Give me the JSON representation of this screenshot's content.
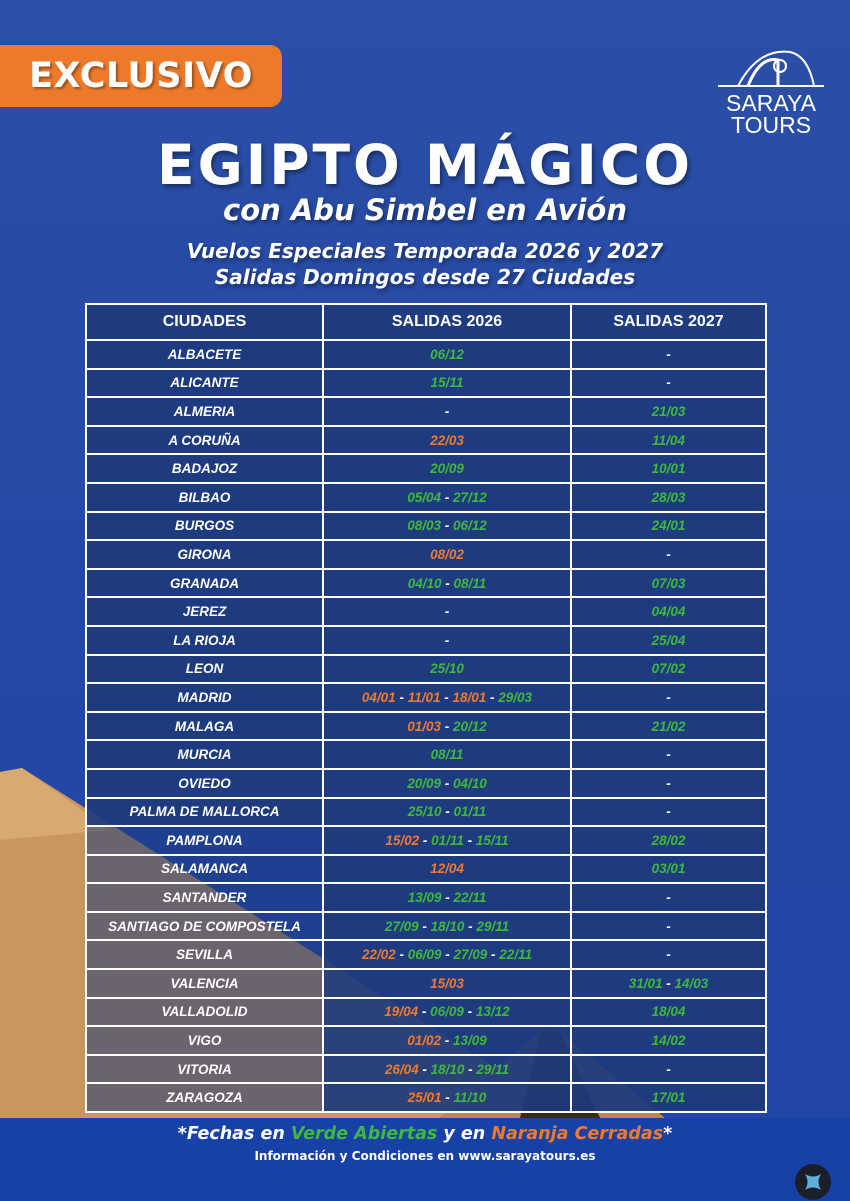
{
  "badge": "EXCLUSIVO",
  "logo": {
    "line1": "SARAYA",
    "line2": "TOURS"
  },
  "title": "EGIPTO MÁGICO",
  "subtitle": "con Abu Simbel en Avión",
  "tagline1": "Vuelos Especiales Temporada 2026 y 2027",
  "tagline2": "Salidas Domingos desde 27 Ciudades",
  "colors": {
    "open": "#3fb83a",
    "closed": "#f07a2a",
    "accent": "#ec7a2a",
    "background": "#2347a6"
  },
  "table": {
    "headers": [
      "CIUDADES",
      "SALIDAS 2026",
      "SALIDAS 2027"
    ],
    "rows": [
      {
        "city": "ALBACETE",
        "s2026": [
          {
            "date": "06/12",
            "status": "open"
          }
        ],
        "s2027": []
      },
      {
        "city": "ALICANTE",
        "s2026": [
          {
            "date": "15/11",
            "status": "open"
          }
        ],
        "s2027": []
      },
      {
        "city": "ALMERIA",
        "s2026": [],
        "s2027": [
          {
            "date": "21/03",
            "status": "open"
          }
        ]
      },
      {
        "city": "A CORUÑA",
        "s2026": [
          {
            "date": "22/03",
            "status": "closed"
          }
        ],
        "s2027": [
          {
            "date": "11/04",
            "status": "open"
          }
        ]
      },
      {
        "city": "BADAJOZ",
        "s2026": [
          {
            "date": "20/09",
            "status": "open"
          }
        ],
        "s2027": [
          {
            "date": "10/01",
            "status": "open"
          }
        ]
      },
      {
        "city": "BILBAO",
        "s2026": [
          {
            "date": "05/04",
            "status": "open"
          },
          {
            "date": "27/12",
            "status": "open"
          }
        ],
        "s2027": [
          {
            "date": "28/03",
            "status": "open"
          }
        ]
      },
      {
        "city": "BURGOS",
        "s2026": [
          {
            "date": "08/03",
            "status": "open"
          },
          {
            "date": "06/12",
            "status": "open"
          }
        ],
        "s2027": [
          {
            "date": "24/01",
            "status": "open"
          }
        ]
      },
      {
        "city": "GIRONA",
        "s2026": [
          {
            "date": "08/02",
            "status": "closed"
          }
        ],
        "s2027": []
      },
      {
        "city": "GRANADA",
        "s2026": [
          {
            "date": "04/10",
            "status": "open"
          },
          {
            "date": "08/11",
            "status": "open"
          }
        ],
        "s2027": [
          {
            "date": "07/03",
            "status": "open"
          }
        ]
      },
      {
        "city": "JEREZ",
        "s2026": [],
        "s2027": [
          {
            "date": "04/04",
            "status": "open"
          }
        ]
      },
      {
        "city": "LA RIOJA",
        "s2026": [],
        "s2027": [
          {
            "date": "25/04",
            "status": "open"
          }
        ]
      },
      {
        "city": "LEON",
        "s2026": [
          {
            "date": "25/10",
            "status": "open"
          }
        ],
        "s2027": [
          {
            "date": "07/02",
            "status": "open"
          }
        ]
      },
      {
        "city": "MADRID",
        "s2026": [
          {
            "date": "04/01",
            "status": "closed"
          },
          {
            "date": "11/01",
            "status": "closed"
          },
          {
            "date": "18/01",
            "status": "closed"
          },
          {
            "date": "29/03",
            "status": "open"
          }
        ],
        "s2027": []
      },
      {
        "city": "MALAGA",
        "s2026": [
          {
            "date": "01/03",
            "status": "closed"
          },
          {
            "date": "20/12",
            "status": "open"
          }
        ],
        "s2027": [
          {
            "date": "21/02",
            "status": "open"
          }
        ]
      },
      {
        "city": "MURCIA",
        "s2026": [
          {
            "date": "08/11",
            "status": "open"
          }
        ],
        "s2027": []
      },
      {
        "city": "OVIEDO",
        "s2026": [
          {
            "date": "20/09",
            "status": "open"
          },
          {
            "date": "04/10",
            "status": "open"
          }
        ],
        "s2027": []
      },
      {
        "city": "PALMA DE  MALLORCA",
        "s2026": [
          {
            "date": "25/10",
            "status": "open"
          },
          {
            "date": "01/11",
            "status": "open"
          }
        ],
        "s2027": []
      },
      {
        "city": "PAMPLONA",
        "s2026": [
          {
            "date": "15/02",
            "status": "closed"
          },
          {
            "date": "01/11",
            "status": "open"
          },
          {
            "date": "15/11",
            "status": "open"
          }
        ],
        "s2027": [
          {
            "date": "28/02",
            "status": "open"
          }
        ]
      },
      {
        "city": "SALAMANCA",
        "s2026": [
          {
            "date": "12/04",
            "status": "closed"
          }
        ],
        "s2027": [
          {
            "date": "03/01",
            "status": "open"
          }
        ]
      },
      {
        "city": "SANTANDER",
        "s2026": [
          {
            "date": "13/09",
            "status": "open"
          },
          {
            "date": "22/11",
            "status": "open"
          }
        ],
        "s2027": []
      },
      {
        "city": "SANTIAGO DE COMPOSTELA",
        "s2026": [
          {
            "date": "27/09",
            "status": "open"
          },
          {
            "date": "18/10",
            "status": "open"
          },
          {
            "date": "29/11",
            "status": "open"
          }
        ],
        "s2027": []
      },
      {
        "city": "SEVILLA",
        "s2026": [
          {
            "date": "22/02",
            "status": "closed"
          },
          {
            "date": "06/09",
            "status": "open"
          },
          {
            "date": "27/09",
            "status": "open"
          },
          {
            "date": "22/11",
            "status": "open"
          }
        ],
        "s2027": []
      },
      {
        "city": "VALENCIA",
        "s2026": [
          {
            "date": "15/03",
            "status": "closed"
          }
        ],
        "s2027": [
          {
            "date": "31/01",
            "status": "open"
          },
          {
            "date": "14/03",
            "status": "open"
          }
        ]
      },
      {
        "city": "VALLADOLID",
        "s2026": [
          {
            "date": "19/04",
            "status": "closed"
          },
          {
            "date": "06/09",
            "status": "open"
          },
          {
            "date": "13/12",
            "status": "open"
          }
        ],
        "s2027": [
          {
            "date": "18/04",
            "status": "open"
          }
        ]
      },
      {
        "city": "VIGO",
        "s2026": [
          {
            "date": "01/02",
            "status": "closed"
          },
          {
            "date": "13/09",
            "status": "open"
          }
        ],
        "s2027": [
          {
            "date": "14/02",
            "status": "open"
          }
        ]
      },
      {
        "city": "VITORIA",
        "s2026": [
          {
            "date": "26/04",
            "status": "closed"
          },
          {
            "date": "18/10",
            "status": "open"
          },
          {
            "date": "29/11",
            "status": "open"
          }
        ],
        "s2027": []
      },
      {
        "city": "ZARAGOZA",
        "s2026": [
          {
            "date": "25/01",
            "status": "closed"
          },
          {
            "date": "11/10",
            "status": "open"
          }
        ],
        "s2027": [
          {
            "date": "17/01",
            "status": "open"
          }
        ]
      }
    ],
    "empty": "-",
    "separator": " - "
  },
  "legend": {
    "prefix": "*Fechas en ",
    "open": "Verde Abiertas",
    "middle": " y en ",
    "closed": "Naranja Cerradas",
    "suffix": "*"
  },
  "info": "Información y Condiciones en www.sarayatours.es"
}
